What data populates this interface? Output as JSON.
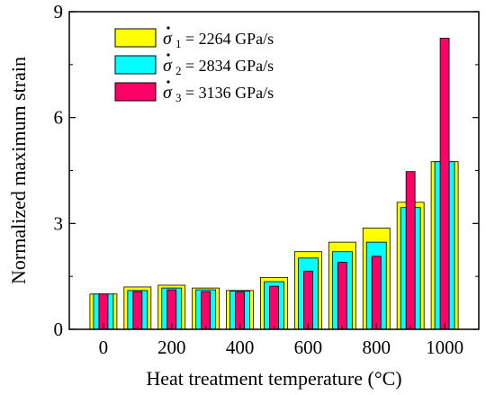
{
  "chart_data": {
    "type": "bar",
    "xlabel": "Heat treatment temperature (°C)",
    "ylabel": "Normalized maximum strain",
    "xlim": [
      -100,
      1100
    ],
    "ylim": [
      0,
      9
    ],
    "x_ticks": [
      0,
      200,
      400,
      600,
      800,
      1000
    ],
    "y_ticks": [
      0,
      3,
      6,
      9
    ],
    "categories": [
      0,
      100,
      200,
      300,
      400,
      500,
      600,
      700,
      800,
      900,
      1000
    ],
    "series": [
      {
        "symbol": "σ",
        "subscript": "1",
        "value_text": "= 2264 GPa/s",
        "color": "#ffff00",
        "values": [
          1.0,
          1.2,
          1.25,
          1.17,
          1.1,
          1.47,
          2.2,
          2.47,
          2.87,
          3.6,
          4.75
        ]
      },
      {
        "symbol": "σ",
        "subscript": "2",
        "value_text": "= 2834 GPa/s",
        "color": "#00ffff",
        "values": [
          1.0,
          1.1,
          1.17,
          1.12,
          1.08,
          1.35,
          2.02,
          2.2,
          2.47,
          3.45,
          4.75
        ]
      },
      {
        "symbol": "σ",
        "subscript": "3",
        "value_text": "= 3136 GPa/s",
        "color": "#ff0066",
        "values": [
          1.0,
          1.07,
          1.12,
          1.07,
          1.05,
          1.22,
          1.65,
          1.9,
          2.07,
          4.47,
          8.25
        ]
      }
    ],
    "grid": false,
    "legend_position": "top-left"
  }
}
